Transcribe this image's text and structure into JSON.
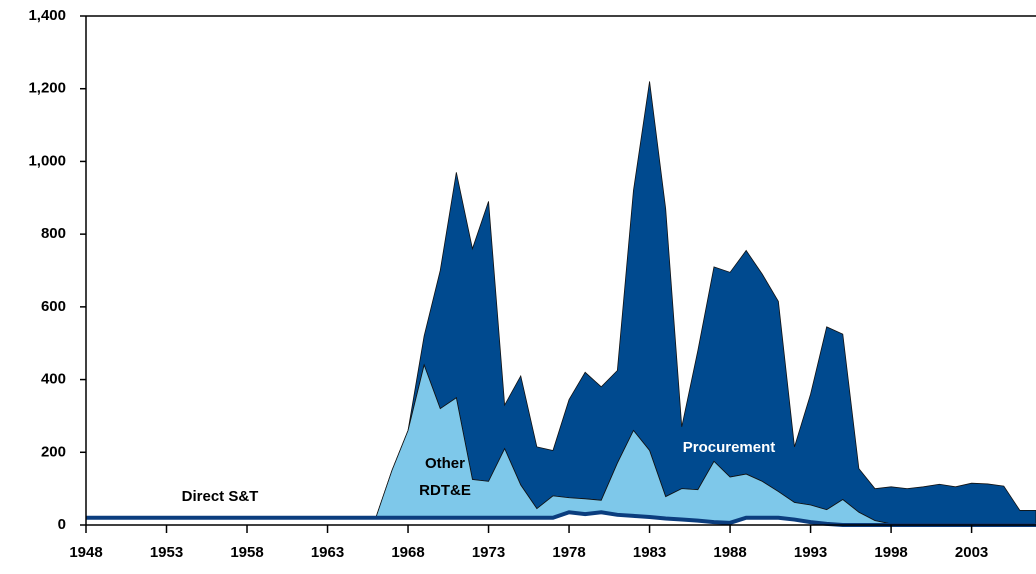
{
  "chart_data": {
    "type": "stacked_area",
    "x": [
      1948,
      1949,
      1950,
      1951,
      1952,
      1953,
      1954,
      1955,
      1956,
      1957,
      1958,
      1959,
      1960,
      1961,
      1962,
      1963,
      1964,
      1965,
      1966,
      1967,
      1968,
      1969,
      1970,
      1971,
      1972,
      1973,
      1974,
      1975,
      1976,
      1977,
      1978,
      1979,
      1980,
      1981,
      1982,
      1983,
      1984,
      1985,
      1986,
      1987,
      1988,
      1989,
      1990,
      1991,
      1992,
      1993,
      1994,
      1995,
      1996,
      1997,
      1998,
      1999,
      2000,
      2001,
      2002,
      2003,
      2004,
      2005,
      2006,
      2007
    ],
    "series": [
      {
        "name": "Direct S&T",
        "color": "#0b3d7e",
        "values": [
          20,
          20,
          20,
          20,
          20,
          20,
          20,
          20,
          20,
          20,
          20,
          20,
          20,
          20,
          20,
          20,
          20,
          20,
          20,
          20,
          20,
          20,
          20,
          20,
          20,
          20,
          20,
          20,
          20,
          20,
          35,
          30,
          35,
          28,
          25,
          22,
          18,
          15,
          12,
          8,
          6,
          20,
          20,
          20,
          15,
          8,
          3,
          0,
          0,
          0,
          0,
          0,
          0,
          0,
          0,
          0,
          0,
          0,
          0,
          0
        ]
      },
      {
        "name": "Other RDT&E",
        "color": "#7ec8ea",
        "values": [
          0,
          0,
          0,
          0,
          0,
          0,
          0,
          0,
          0,
          0,
          0,
          0,
          0,
          0,
          0,
          0,
          0,
          0,
          0,
          130,
          240,
          420,
          300,
          330,
          105,
          100,
          190,
          90,
          25,
          60,
          40,
          42,
          33,
          142,
          235,
          183,
          60,
          85,
          85,
          167,
          126,
          120,
          100,
          72,
          47,
          47,
          39,
          70,
          35,
          12,
          3,
          0,
          0,
          0,
          0,
          0,
          0,
          0,
          0,
          0
        ]
      },
      {
        "name": "Procurement",
        "color": "#004a8f",
        "values": [
          0,
          0,
          0,
          0,
          0,
          0,
          0,
          0,
          0,
          0,
          0,
          0,
          0,
          0,
          0,
          0,
          0,
          0,
          0,
          0,
          0,
          80,
          380,
          620,
          635,
          770,
          120,
          300,
          170,
          125,
          270,
          348,
          312,
          255,
          660,
          1015,
          792,
          170,
          383,
          535,
          563,
          615,
          570,
          523,
          153,
          305,
          503,
          455,
          120,
          88,
          102,
          100,
          105,
          112,
          105,
          115,
          113,
          107,
          40,
          40
        ]
      }
    ],
    "xlim": [
      1948,
      2007
    ],
    "xticks": [
      1948,
      1953,
      1958,
      1963,
      1968,
      1973,
      1978,
      1983,
      1988,
      1993,
      1998,
      2003
    ],
    "ylim": [
      0,
      1400
    ],
    "yticks": [
      0,
      200,
      400,
      600,
      800,
      {
        "value": 1000,
        "label": "1,000"
      },
      {
        "value": 1200,
        "label": "1,200"
      },
      {
        "value": 1400,
        "label": "1,400"
      }
    ]
  }
}
